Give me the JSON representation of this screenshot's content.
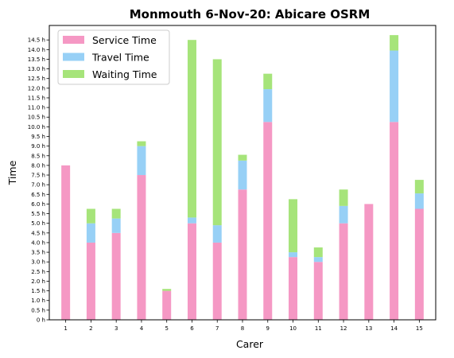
{
  "chart_data": {
    "type": "bar",
    "stacked": true,
    "title": "Monmouth 6-Nov-20: Abicare OSRM",
    "xlabel": "Carer",
    "ylabel": "Time",
    "categories": [
      "1",
      "2",
      "3",
      "4",
      "5",
      "6",
      "7",
      "8",
      "9",
      "10",
      "11",
      "12",
      "13",
      "14",
      "15"
    ],
    "ylim": [
      0,
      15.25
    ],
    "yticks": [
      0,
      0.5,
      1,
      1.5,
      2,
      2.5,
      3,
      3.5,
      4,
      4.5,
      5,
      5.5,
      6,
      6.5,
      7,
      7.5,
      8,
      8.5,
      9,
      9.5,
      10,
      10.5,
      11,
      11.5,
      12,
      12.5,
      13,
      13.5,
      14,
      14.5
    ],
    "ytick_labels": [
      "0 h",
      "0.5 h",
      "1.0 h",
      "1.5 h",
      "2.0 h",
      "2.5 h",
      "3.0 h",
      "3.5 h",
      "4.0 h",
      "4.5 h",
      "5.0 h",
      "5.5 h",
      "6.0 h",
      "6.5 h",
      "7.0 h",
      "7.5 h",
      "8.0 h",
      "8.5 h",
      "9.0 h",
      "9.5 h",
      "10.0 h",
      "10.5 h",
      "11.0 h",
      "11.5 h",
      "12.0 h",
      "12.5 h",
      "13.0 h",
      "13.5 h",
      "14.0 h",
      "14.5 h"
    ],
    "legend_position": "top-left",
    "grid": false,
    "series": [
      {
        "name": "Service Time",
        "color": "#f598c4",
        "values": [
          8.0,
          4.0,
          4.5,
          7.5,
          1.5,
          5.0,
          4.0,
          6.75,
          10.25,
          3.25,
          3.0,
          5.0,
          6.0,
          10.25,
          5.75
        ]
      },
      {
        "name": "Travel Time",
        "color": "#97d0f6",
        "values": [
          0.0,
          1.0,
          0.75,
          1.5,
          0.0,
          0.3,
          0.9,
          1.5,
          1.7,
          0.25,
          0.25,
          0.9,
          0.0,
          3.7,
          0.8
        ]
      },
      {
        "name": "Waiting Time",
        "color": "#a6e47a",
        "values": [
          0.0,
          0.75,
          0.5,
          0.25,
          0.1,
          9.2,
          8.6,
          0.3,
          0.8,
          2.75,
          0.5,
          0.85,
          0.0,
          0.8,
          0.7
        ]
      }
    ]
  }
}
